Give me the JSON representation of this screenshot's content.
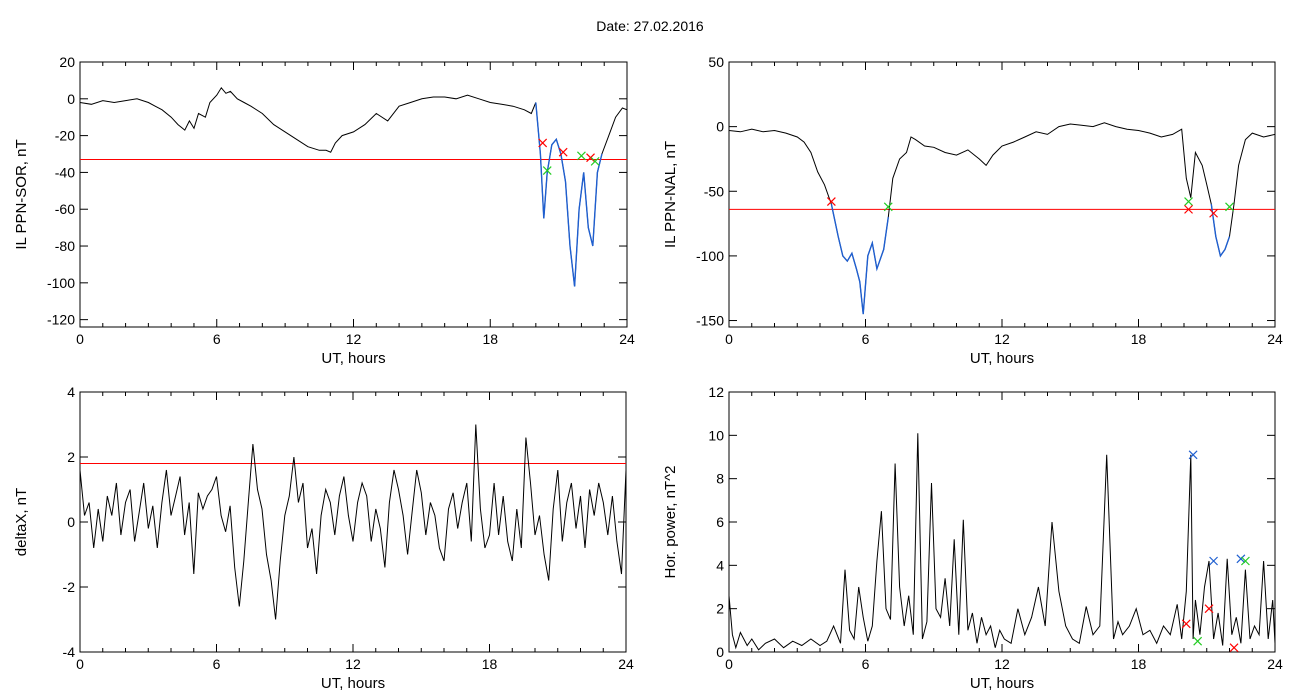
{
  "figure": {
    "title": "Date:  27.02.2016"
  },
  "colors": {
    "trace": "#000000",
    "threshold": "#ff0000",
    "highlight": "#1f5fd0",
    "marker_red": "#ff0000",
    "marker_green": "#22cc22",
    "marker_blue": "#1f5fd0"
  },
  "chart_data": [
    {
      "id": "ppn-sor",
      "type": "line",
      "xlabel": "UT, hours",
      "ylabel": "IL PPN-SOR, nT",
      "xlim": [
        0,
        24
      ],
      "ylim": [
        -124,
        20
      ],
      "xticks": [
        0,
        6,
        12,
        18,
        24
      ],
      "yticks": [
        20,
        0,
        -20,
        -40,
        -60,
        -80,
        -100,
        -120
      ],
      "threshold": -33,
      "series": [
        {
          "x": [
            0,
            0.5,
            1,
            1.5,
            2,
            2.5,
            3,
            3.3,
            3.6,
            4,
            4.3,
            4.6,
            4.8,
            5.0,
            5.2,
            5.5,
            5.7,
            6.0,
            6.2,
            6.4,
            6.6,
            6.9,
            7.2,
            7.5,
            8,
            8.5,
            9,
            9.5,
            10,
            10.5,
            10.8,
            11.0,
            11.2,
            11.5,
            12,
            12.5,
            13,
            13.5,
            14,
            14.5,
            15,
            15.5,
            16,
            16.5,
            17,
            17.5,
            18,
            18.5,
            19,
            19.5,
            19.8,
            20.0,
            20.2,
            20.35,
            20.5,
            20.7,
            20.9,
            21.1,
            21.3,
            21.5,
            21.7,
            21.9,
            22.1,
            22.3,
            22.5,
            22.7,
            22.9,
            23.2,
            23.5,
            23.8,
            24
          ],
          "y": [
            -2,
            -3,
            -1,
            -2,
            -1,
            0,
            -2,
            -4,
            -6,
            -10,
            -14,
            -17,
            -12,
            -16,
            -8,
            -10,
            -2,
            2,
            6,
            3,
            4,
            0,
            -2,
            -4,
            -8,
            -14,
            -18,
            -22,
            -26,
            -28,
            -28,
            -29,
            -24,
            -20,
            -18,
            -14,
            -8,
            -12,
            -4,
            -2,
            0,
            1,
            1,
            0,
            2,
            0,
            -2,
            -3,
            -4,
            -6,
            -8,
            -2,
            -30,
            -65,
            -40,
            -25,
            -22,
            -30,
            -45,
            -80,
            -102,
            -60,
            -40,
            -70,
            -80,
            -40,
            -30,
            -20,
            -10,
            -5,
            -6
          ]
        }
      ],
      "blue_segments": [
        [
          20.0,
          22.9
        ]
      ],
      "markers": [
        {
          "x": 20.3,
          "y": -24,
          "color": "red",
          "symbol": "x"
        },
        {
          "x": 20.5,
          "y": -39,
          "color": "green",
          "symbol": "x"
        },
        {
          "x": 21.2,
          "y": -29,
          "color": "red",
          "symbol": "x"
        },
        {
          "x": 22.0,
          "y": -31,
          "color": "green",
          "symbol": "x"
        },
        {
          "x": 22.4,
          "y": -32,
          "color": "red",
          "symbol": "x"
        },
        {
          "x": 22.6,
          "y": -34,
          "color": "green",
          "symbol": "x"
        }
      ]
    },
    {
      "id": "ppn-nal",
      "type": "line",
      "xlabel": "UT, hours",
      "ylabel": "IL PPN-NAL, nT",
      "xlim": [
        0,
        24
      ],
      "ylim": [
        -155,
        50
      ],
      "xticks": [
        0,
        6,
        12,
        18,
        24
      ],
      "yticks": [
        50,
        0,
        -50,
        -100,
        -150
      ],
      "threshold": -64,
      "series": [
        {
          "x": [
            0,
            0.5,
            1,
            1.5,
            2,
            2.5,
            3,
            3.3,
            3.6,
            3.9,
            4.2,
            4.5,
            4.8,
            5.0,
            5.2,
            5.4,
            5.6,
            5.75,
            5.9,
            6.1,
            6.3,
            6.5,
            6.8,
            7.0,
            7.2,
            7.5,
            7.8,
            8.0,
            8.2,
            8.6,
            9,
            9.5,
            10,
            10.5,
            11,
            11.3,
            11.6,
            12,
            12.5,
            13,
            13.5,
            14,
            14.5,
            15,
            15.5,
            16,
            16.5,
            17,
            17.5,
            18,
            18.5,
            19,
            19.5,
            19.9,
            20.1,
            20.3,
            20.5,
            20.8,
            21.0,
            21.2,
            21.4,
            21.6,
            21.8,
            22.0,
            22.2,
            22.4,
            22.7,
            23,
            23.5,
            24
          ],
          "y": [
            -3,
            -4,
            -2,
            -4,
            -3,
            -5,
            -8,
            -12,
            -20,
            -35,
            -45,
            -60,
            -85,
            -100,
            -104,
            -98,
            -110,
            -120,
            -145,
            -100,
            -90,
            -110,
            -95,
            -70,
            -40,
            -25,
            -20,
            -8,
            -10,
            -15,
            -16,
            -20,
            -22,
            -18,
            -25,
            -30,
            -22,
            -15,
            -12,
            -8,
            -4,
            -6,
            0,
            2,
            1,
            0,
            3,
            0,
            -2,
            -3,
            -5,
            -8,
            -6,
            -2,
            -40,
            -55,
            -20,
            -30,
            -45,
            -60,
            -85,
            -100,
            -95,
            -85,
            -60,
            -30,
            -10,
            -5,
            -8,
            -6
          ]
        }
      ],
      "blue_segments": [
        [
          4.5,
          7.0
        ],
        [
          21.2,
          22.0
        ]
      ],
      "markers": [
        {
          "x": 4.5,
          "y": -58,
          "color": "red",
          "symbol": "x"
        },
        {
          "x": 7.0,
          "y": -62,
          "color": "green",
          "symbol": "x"
        },
        {
          "x": 20.2,
          "y": -58,
          "color": "green",
          "symbol": "x"
        },
        {
          "x": 20.2,
          "y": -64,
          "color": "red",
          "symbol": "x"
        },
        {
          "x": 21.3,
          "y": -67,
          "color": "red",
          "symbol": "x"
        },
        {
          "x": 22.0,
          "y": -62,
          "color": "green",
          "symbol": "x"
        }
      ]
    },
    {
      "id": "deltax",
      "type": "line",
      "xlabel": "UT, hours",
      "ylabel": "deltaX, nT",
      "xlim": [
        0,
        24
      ],
      "ylim": [
        -4,
        4
      ],
      "xticks": [
        0,
        6,
        12,
        18,
        24
      ],
      "yticks": [
        4,
        2,
        0,
        -2,
        -4
      ],
      "threshold": 1.8,
      "series": [
        {
          "x": [
            0,
            0.2,
            0.4,
            0.6,
            0.8,
            1.0,
            1.2,
            1.4,
            1.6,
            1.8,
            2.0,
            2.2,
            2.4,
            2.6,
            2.8,
            3.0,
            3.2,
            3.4,
            3.6,
            3.8,
            4.0,
            4.2,
            4.4,
            4.6,
            4.8,
            5.0,
            5.2,
            5.4,
            5.6,
            5.8,
            6.0,
            6.2,
            6.4,
            6.6,
            6.8,
            7.0,
            7.2,
            7.4,
            7.6,
            7.8,
            8.0,
            8.2,
            8.4,
            8.6,
            8.8,
            9.0,
            9.2,
            9.4,
            9.6,
            9.8,
            10.0,
            10.2,
            10.4,
            10.6,
            10.8,
            11.0,
            11.2,
            11.4,
            11.6,
            11.8,
            12.0,
            12.2,
            12.4,
            12.6,
            12.8,
            13.0,
            13.2,
            13.4,
            13.6,
            13.8,
            14.0,
            14.2,
            14.4,
            14.6,
            14.8,
            15.0,
            15.2,
            15.4,
            15.6,
            15.8,
            16.0,
            16.2,
            16.4,
            16.6,
            16.8,
            17.0,
            17.2,
            17.4,
            17.6,
            17.8,
            18.0,
            18.2,
            18.4,
            18.6,
            18.8,
            19.0,
            19.2,
            19.4,
            19.6,
            19.8,
            20.0,
            20.2,
            20.4,
            20.6,
            20.8,
            21.0,
            21.2,
            21.4,
            21.6,
            21.8,
            22.0,
            22.2,
            22.4,
            22.6,
            22.8,
            23.0,
            23.2,
            23.4,
            23.6,
            23.8,
            24.0
          ],
          "y": [
            1.6,
            0.2,
            0.6,
            -0.8,
            0.4,
            -0.6,
            0.8,
            0.2,
            1.2,
            -0.4,
            0.6,
            1.0,
            -0.6,
            0.3,
            1.2,
            -0.2,
            0.5,
            -0.8,
            0.6,
            1.6,
            0.2,
            0.8,
            1.4,
            -0.4,
            0.6,
            -1.6,
            0.9,
            0.4,
            0.8,
            1.0,
            1.4,
            0.2,
            -0.3,
            0.5,
            -1.4,
            -2.6,
            -1.2,
            0.6,
            2.4,
            1.0,
            0.4,
            -1.0,
            -1.8,
            -3.0,
            -1.2,
            0.2,
            0.8,
            2.0,
            0.6,
            1.2,
            -0.8,
            -0.2,
            -1.6,
            0.2,
            1.0,
            0.6,
            -0.4,
            0.8,
            1.4,
            0.2,
            -0.6,
            0.6,
            1.2,
            0.8,
            -0.6,
            0.4,
            -0.2,
            -1.4,
            0.6,
            1.6,
            1.0,
            0.2,
            -1.0,
            0.3,
            1.6,
            0.9,
            -0.4,
            0.6,
            0.2,
            -0.8,
            -1.2,
            0.4,
            0.9,
            -0.2,
            0.6,
            1.2,
            -0.6,
            3.0,
            0.4,
            -0.8,
            -0.4,
            1.2,
            -0.4,
            0.8,
            -0.6,
            -1.2,
            0.4,
            -0.8,
            2.6,
            1.2,
            -0.4,
            0.2,
            -1.0,
            -1.8,
            0.4,
            1.6,
            -0.6,
            0.6,
            1.2,
            -0.2,
            0.8,
            -0.8,
            1.0,
            0.2,
            1.2,
            0.6,
            -0.4,
            0.8,
            -0.6,
            -1.6,
            1.6
          ]
        }
      ],
      "blue_segments": [],
      "markers": []
    },
    {
      "id": "hor-power",
      "type": "line",
      "xlabel": "UT, hours",
      "ylabel": "Hor. power, nT^2",
      "xlim": [
        0,
        24
      ],
      "ylim": [
        0,
        12
      ],
      "xticks": [
        0,
        6,
        12,
        18,
        24
      ],
      "yticks": [
        12,
        10,
        8,
        6,
        4,
        2,
        0
      ],
      "threshold": null,
      "series": [
        {
          "x": [
            0,
            0.15,
            0.3,
            0.5,
            0.8,
            1.0,
            1.3,
            1.6,
            2.0,
            2.4,
            2.8,
            3.2,
            3.6,
            4.0,
            4.3,
            4.6,
            4.9,
            5.1,
            5.3,
            5.5,
            5.7,
            5.9,
            6.1,
            6.3,
            6.5,
            6.7,
            6.9,
            7.1,
            7.3,
            7.5,
            7.7,
            7.9,
            8.1,
            8.3,
            8.5,
            8.7,
            8.9,
            9.1,
            9.3,
            9.5,
            9.7,
            9.9,
            10.1,
            10.3,
            10.5,
            10.7,
            10.9,
            11.1,
            11.3,
            11.5,
            11.7,
            11.9,
            12.1,
            12.4,
            12.7,
            13.0,
            13.3,
            13.6,
            13.9,
            14.2,
            14.5,
            14.8,
            15.1,
            15.4,
            15.7,
            16.0,
            16.3,
            16.6,
            16.9,
            17.1,
            17.3,
            17.6,
            17.9,
            18.2,
            18.5,
            18.8,
            19.1,
            19.4,
            19.7,
            19.9,
            20.1,
            20.3,
            20.4,
            20.5,
            20.7,
            20.9,
            21.1,
            21.3,
            21.5,
            21.7,
            21.9,
            22.1,
            22.3,
            22.5,
            22.7,
            22.9,
            23.1,
            23.3,
            23.5,
            23.7,
            23.9,
            24.0
          ],
          "y": [
            2.6,
            0.8,
            0.2,
            0.9,
            0.3,
            0.6,
            0.1,
            0.4,
            0.6,
            0.2,
            0.5,
            0.3,
            0.6,
            0.3,
            0.5,
            1.2,
            0.4,
            3.8,
            1.0,
            0.6,
            3.0,
            1.6,
            0.5,
            1.2,
            4.2,
            6.5,
            2.0,
            1.5,
            8.7,
            3.0,
            1.2,
            2.6,
            0.8,
            10.1,
            0.6,
            1.4,
            7.8,
            2.0,
            1.6,
            3.4,
            1.2,
            5.2,
            0.8,
            6.1,
            1.0,
            1.8,
            0.4,
            1.6,
            0.8,
            1.2,
            0.2,
            1.0,
            0.6,
            0.4,
            2.0,
            0.8,
            1.6,
            3.0,
            1.2,
            6.0,
            2.8,
            1.2,
            0.6,
            0.4,
            2.1,
            0.8,
            1.2,
            9.1,
            0.6,
            1.4,
            0.8,
            1.2,
            2.0,
            0.8,
            1.0,
            0.4,
            1.2,
            0.8,
            2.2,
            0.6,
            2.8,
            9.1,
            0.6,
            2.4,
            0.8,
            3.0,
            4.2,
            0.6,
            1.8,
            0.3,
            4.3,
            0.8,
            1.6,
            0.4,
            3.8,
            0.6,
            1.2,
            0.8,
            4.2,
            0.6,
            2.4,
            0.4
          ]
        }
      ],
      "blue_segments": [],
      "markers": [
        {
          "x": 20.1,
          "y": 1.3,
          "color": "red",
          "symbol": "x"
        },
        {
          "x": 20.4,
          "y": 9.1,
          "color": "blue",
          "symbol": "x"
        },
        {
          "x": 20.6,
          "y": 0.5,
          "color": "green",
          "symbol": "x"
        },
        {
          "x": 21.1,
          "y": 2.0,
          "color": "red",
          "symbol": "x"
        },
        {
          "x": 21.3,
          "y": 4.2,
          "color": "blue",
          "symbol": "x"
        },
        {
          "x": 22.2,
          "y": 0.2,
          "color": "red",
          "symbol": "x"
        },
        {
          "x": 22.5,
          "y": 4.3,
          "color": "blue",
          "symbol": "x"
        },
        {
          "x": 22.7,
          "y": 4.2,
          "color": "green",
          "symbol": "x"
        }
      ]
    }
  ]
}
